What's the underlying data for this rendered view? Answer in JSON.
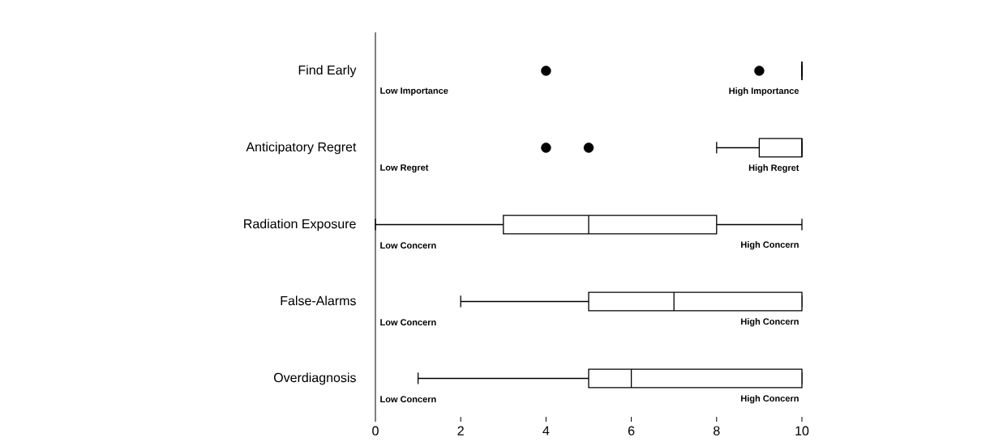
{
  "chart_data": {
    "type": "box",
    "orientation": "horizontal",
    "categories": [
      "Find Early",
      "Anticipatory Regret",
      "Radiation Exposure",
      "False-Alarms",
      "Overdiagnosis"
    ],
    "boxes": [
      {
        "low": 10,
        "q1": 10,
        "median": 10,
        "q3": 10,
        "high": 10,
        "outliers": [
          4,
          9
        ]
      },
      {
        "low": 8,
        "q1": 9,
        "median": 10,
        "q3": 10,
        "high": 10,
        "outliers": [
          4,
          5
        ]
      },
      {
        "low": 0,
        "q1": 3,
        "median": 5,
        "q3": 8,
        "high": 10
      },
      {
        "low": 2,
        "q1": 5,
        "median": 7,
        "q3": 10,
        "high": 10
      },
      {
        "low": 1,
        "q1": 5,
        "median": 6,
        "q3": 10,
        "high": 10
      }
    ],
    "xlim": [
      0,
      10
    ],
    "xticks": [
      0,
      2,
      4,
      6,
      8,
      10
    ],
    "annotations": [
      "Low Importance",
      "High Importance",
      "Low Regret",
      "High Regret",
      "Low Concern",
      "High Concern",
      "Low Concern",
      "High Concern",
      "Low Concern",
      "High Concern"
    ]
  }
}
